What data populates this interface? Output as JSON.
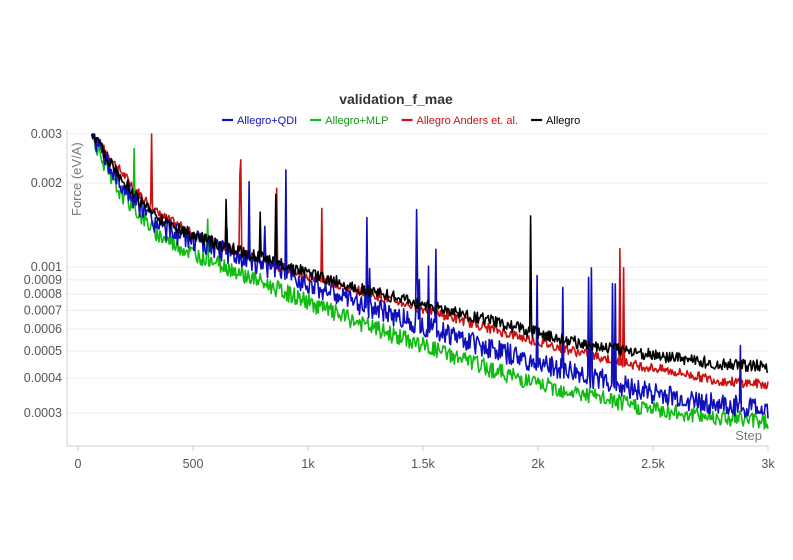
{
  "chart_data": {
    "type": "line",
    "title": "validation_f_mae",
    "xlabel": "Step",
    "ylabel": "Force (eV/A)",
    "xlim": [
      0,
      3000
    ],
    "ylim": [
      0.00025,
      0.003
    ],
    "yscale": "log",
    "grid": true,
    "legend_position": "top-center",
    "x_ticks": [
      0,
      500,
      1000,
      1500,
      2000,
      2500,
      3000
    ],
    "x_tick_labels": [
      "0",
      "500",
      "1k",
      "1.5k",
      "2k",
      "2.5k",
      "3k"
    ],
    "y_ticks": [
      0.0003,
      0.0004,
      0.0005,
      0.0006,
      0.0007,
      0.0008,
      0.0009,
      0.001,
      0.002,
      0.003
    ],
    "y_tick_labels": [
      "0.0003",
      "0.0004",
      "0.0005",
      "0.0006",
      "0.0007",
      "0.0008",
      "0.0009",
      "0.001",
      "0.002",
      "0.003"
    ],
    "series": [
      {
        "name": "Allegro+QDI",
        "color": "#1010bb",
        "x": [
          60,
          150,
          250,
          350,
          500,
          650,
          800,
          1000,
          1200,
          1400,
          1600,
          1800,
          2000,
          2200,
          2400,
          2600,
          2800,
          3000
        ],
        "y": [
          0.003,
          0.0022,
          0.0017,
          0.0014,
          0.00125,
          0.00112,
          0.00102,
          0.00088,
          0.00075,
          0.00066,
          0.00058,
          0.00051,
          0.00045,
          0.00041,
          0.00037,
          0.00034,
          0.00032,
          0.00031
        ]
      },
      {
        "name": "Allegro+MLP",
        "color": "#11bb11",
        "x": [
          60,
          150,
          250,
          350,
          500,
          650,
          800,
          1000,
          1200,
          1400,
          1600,
          1800,
          2000,
          2200,
          2400,
          2600,
          2800,
          3000
        ],
        "y": [
          0.003,
          0.002,
          0.0016,
          0.0013,
          0.00112,
          0.001,
          0.00088,
          0.00075,
          0.00064,
          0.00056,
          0.00049,
          0.00043,
          0.00038,
          0.00035,
          0.00032,
          0.0003,
          0.00029,
          0.00028
        ]
      },
      {
        "name": "Allegro Anders et. al.",
        "color": "#cc1111",
        "x": [
          60,
          150,
          250,
          350,
          500,
          650,
          800,
          1000,
          1200,
          1400,
          1600,
          1800,
          2000,
          2200,
          2400,
          2600,
          2800,
          3000
        ],
        "y": [
          0.003,
          0.0024,
          0.0019,
          0.00155,
          0.00132,
          0.00117,
          0.00105,
          0.00093,
          0.00083,
          0.00075,
          0.00067,
          0.0006,
          0.00054,
          0.00049,
          0.00045,
          0.00042,
          0.00039,
          0.00038
        ]
      },
      {
        "name": "Allegro",
        "color": "#000000",
        "x": [
          60,
          150,
          250,
          350,
          500,
          650,
          800,
          1000,
          1200,
          1400,
          1600,
          1800,
          2000,
          2200,
          2400,
          2600,
          2800,
          3000
        ],
        "y": [
          0.003,
          0.0023,
          0.0018,
          0.0015,
          0.0013,
          0.00118,
          0.00108,
          0.00095,
          0.00085,
          0.00077,
          0.0007,
          0.00064,
          0.00058,
          0.00053,
          0.0005,
          0.00047,
          0.00045,
          0.00044
        ]
      }
    ]
  }
}
